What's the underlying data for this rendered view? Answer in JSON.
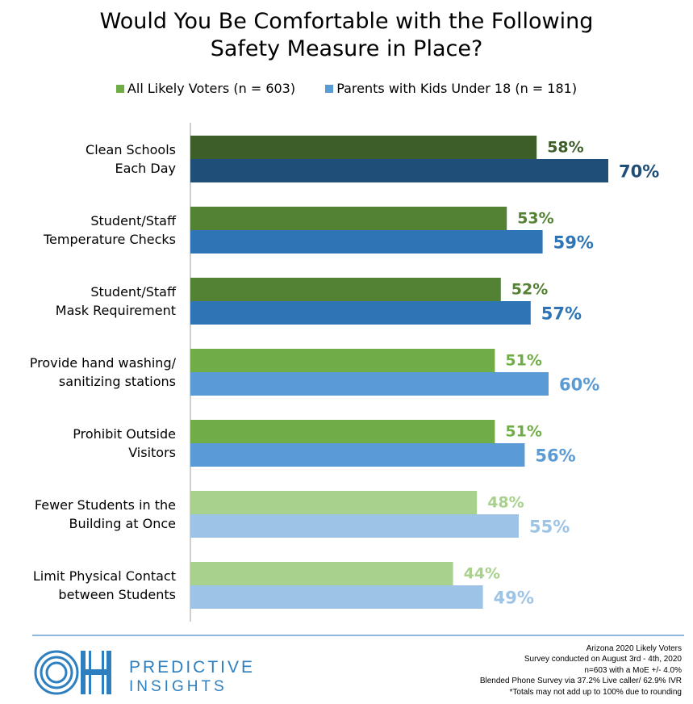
{
  "chart_data": {
    "type": "bar",
    "orientation": "horizontal",
    "title_line1": "Would You Be Comfortable with the Following",
    "title_line2": "Safety Measure in Place?",
    "categories": [
      {
        "line1": "Clean Schools",
        "line2": "Each Day"
      },
      {
        "line1": "Student/Staff",
        "line2": "Temperature Checks"
      },
      {
        "line1": "Student/Staff",
        "line2": "Mask Requirement"
      },
      {
        "line1": "Provide hand washing/",
        "line2": "sanitizing stations"
      },
      {
        "line1": "Prohibit Outside",
        "line2": "Visitors"
      },
      {
        "line1": "Fewer Students in the",
        "line2": "Building at Once"
      },
      {
        "line1": "Limit Physical Contact",
        "line2": "between Students"
      }
    ],
    "series": [
      {
        "name": "All Likely Voters (n = 603)",
        "values": [
          58,
          53,
          52,
          51,
          51,
          48,
          44
        ],
        "labels": [
          "58%",
          "53%",
          "52%",
          "51%",
          "51%",
          "48%",
          "44%"
        ],
        "bar_colors": [
          "#3d5e28",
          "#548235",
          "#548235",
          "#70ad47",
          "#70ad47",
          "#a9d18e",
          "#a9d18e"
        ],
        "label_colors": [
          "#3d5e28",
          "#548235",
          "#548235",
          "#70ad47",
          "#70ad47",
          "#a9d18e",
          "#a9d18e"
        ]
      },
      {
        "name": "Parents with Kids Under 18 (n = 181)",
        "values": [
          70,
          59,
          57,
          60,
          56,
          55,
          49
        ],
        "labels": [
          "70%",
          "59%",
          "57%",
          "60%",
          "56%",
          "55%",
          "49%"
        ],
        "bar_colors": [
          "#1f4e79",
          "#2e75b6",
          "#2e75b6",
          "#5b9bd5",
          "#5b9bd5",
          "#9dc3e6",
          "#9dc3e6"
        ],
        "label_colors": [
          "#1f4e79",
          "#2e75b6",
          "#2e75b6",
          "#5b9bd5",
          "#5b9bd5",
          "#9dc3e6",
          "#9dc3e6"
        ]
      }
    ],
    "legend_colors": [
      "#70ad47",
      "#5b9bd5"
    ],
    "legend_position": "top",
    "xlim": [
      0,
      100
    ],
    "grid": false
  },
  "footer": {
    "brand_line1": "PREDICTIVE",
    "brand_line2": "INSIGHTS",
    "logo_text": "OH",
    "brand_color": "#2d7fc0",
    "notes": [
      "Arizona 2020 Likely Voters",
      "Survey conducted on August 3rd - 4th, 2020",
      "n=603 with a MoE +/- 4.0%",
      "Blended Phone Survey via 37.2% Live caller/ 62.9% IVR",
      "*Totals may not add up to 100% due to rounding"
    ]
  }
}
